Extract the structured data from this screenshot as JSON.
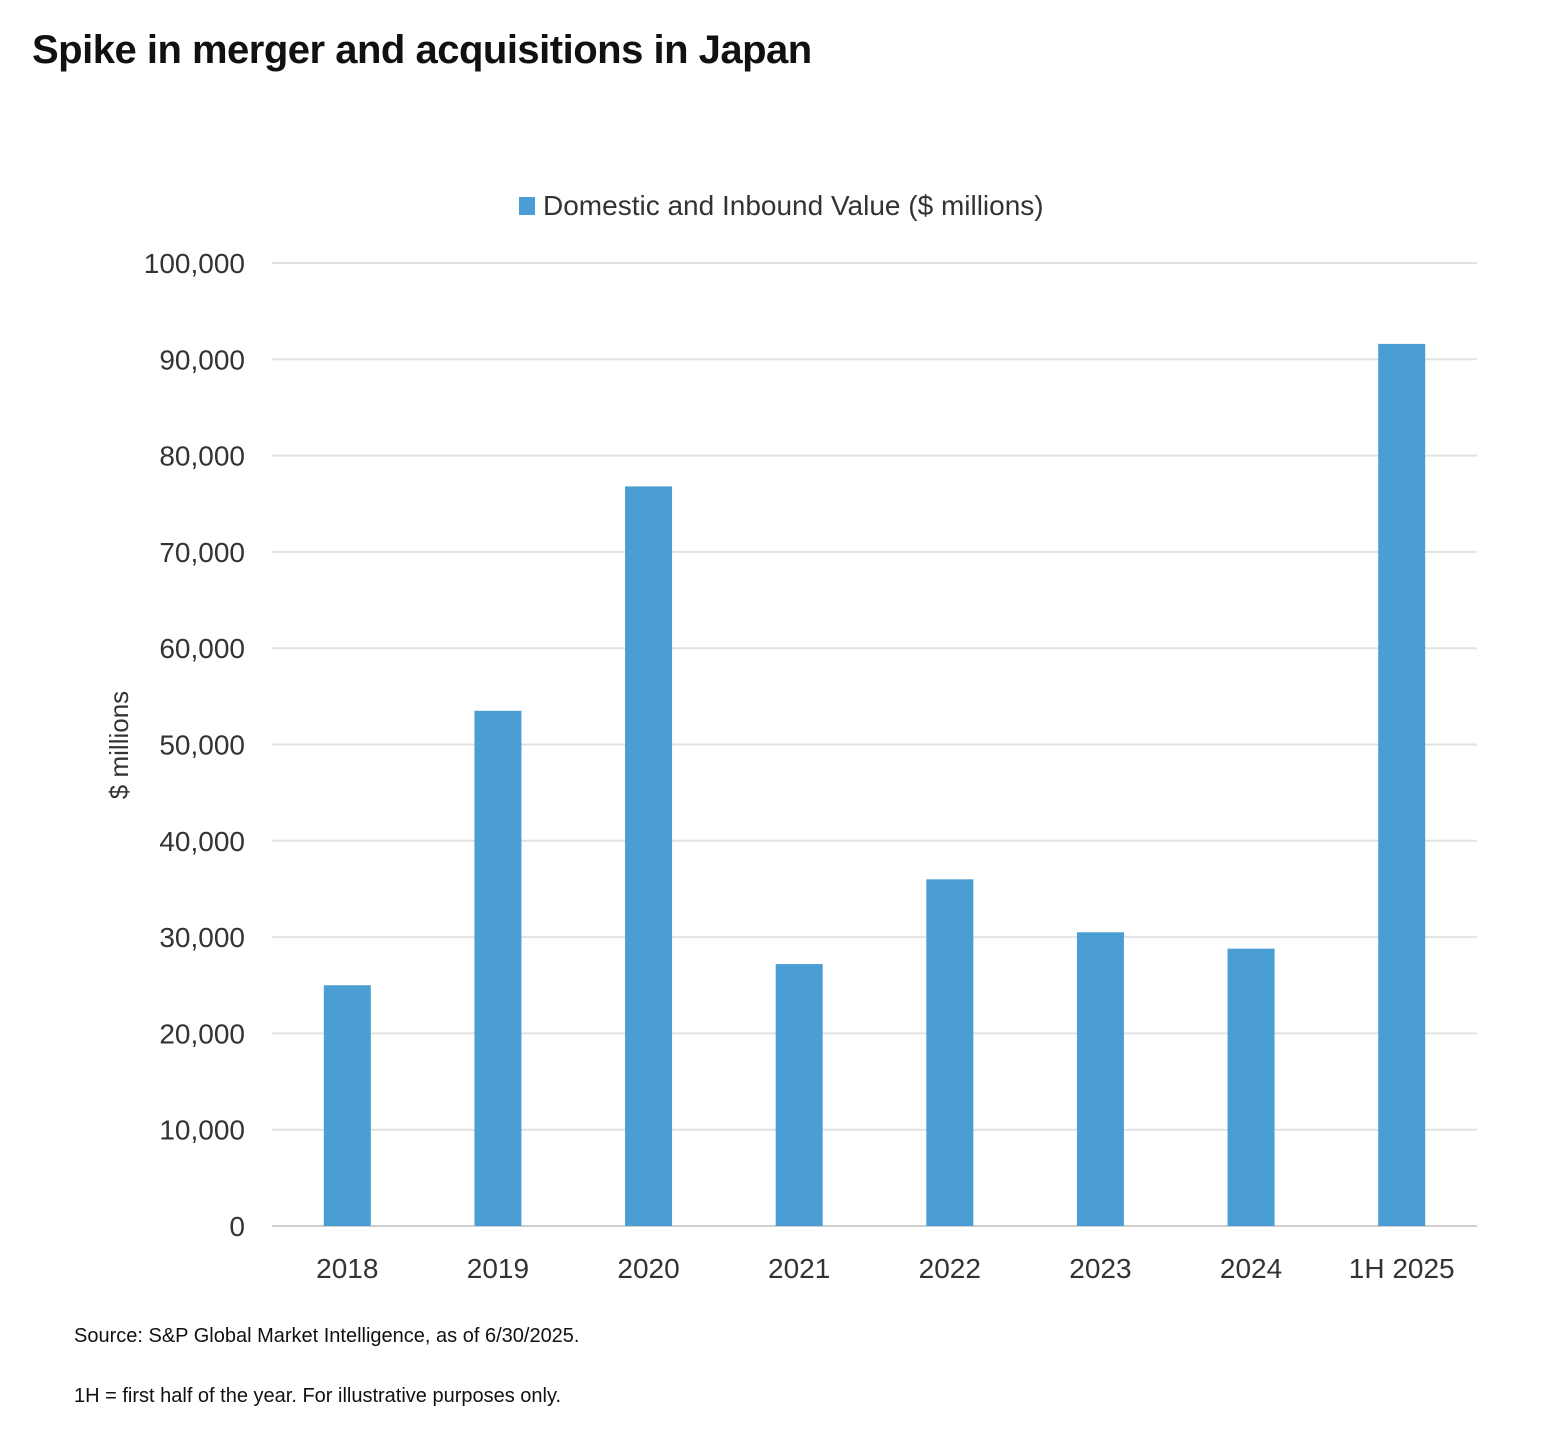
{
  "title": "Spike in merger and acquisitions in Japan",
  "source": "Source: S&P Global Market Intelligence, as of 6/30/2025.",
  "footnote": "1H = first half of the year. For illustrative purposes only.",
  "chart_data": {
    "type": "bar",
    "categories": [
      "2018",
      "2019",
      "2020",
      "2021",
      "2022",
      "2023",
      "2024",
      "1H 2025"
    ],
    "series": [
      {
        "name": "Domestic and Inbound Value ($ millions)",
        "values": [
          25000,
          53500,
          76800,
          27200,
          36000,
          30500,
          28800,
          91600
        ],
        "color": "#4a9ed4"
      }
    ],
    "ylabel": "$ millions",
    "ylim": [
      0,
      100000
    ],
    "yticks": [
      0,
      10000,
      20000,
      30000,
      40000,
      50000,
      60000,
      70000,
      80000,
      90000,
      100000
    ],
    "ytick_labels": [
      "0",
      "10,000",
      "20,000",
      "30,000",
      "40,000",
      "50,000",
      "60,000",
      "70,000",
      "80,000",
      "90,000",
      "100,000"
    ],
    "grid": true,
    "legend_position": "top"
  }
}
